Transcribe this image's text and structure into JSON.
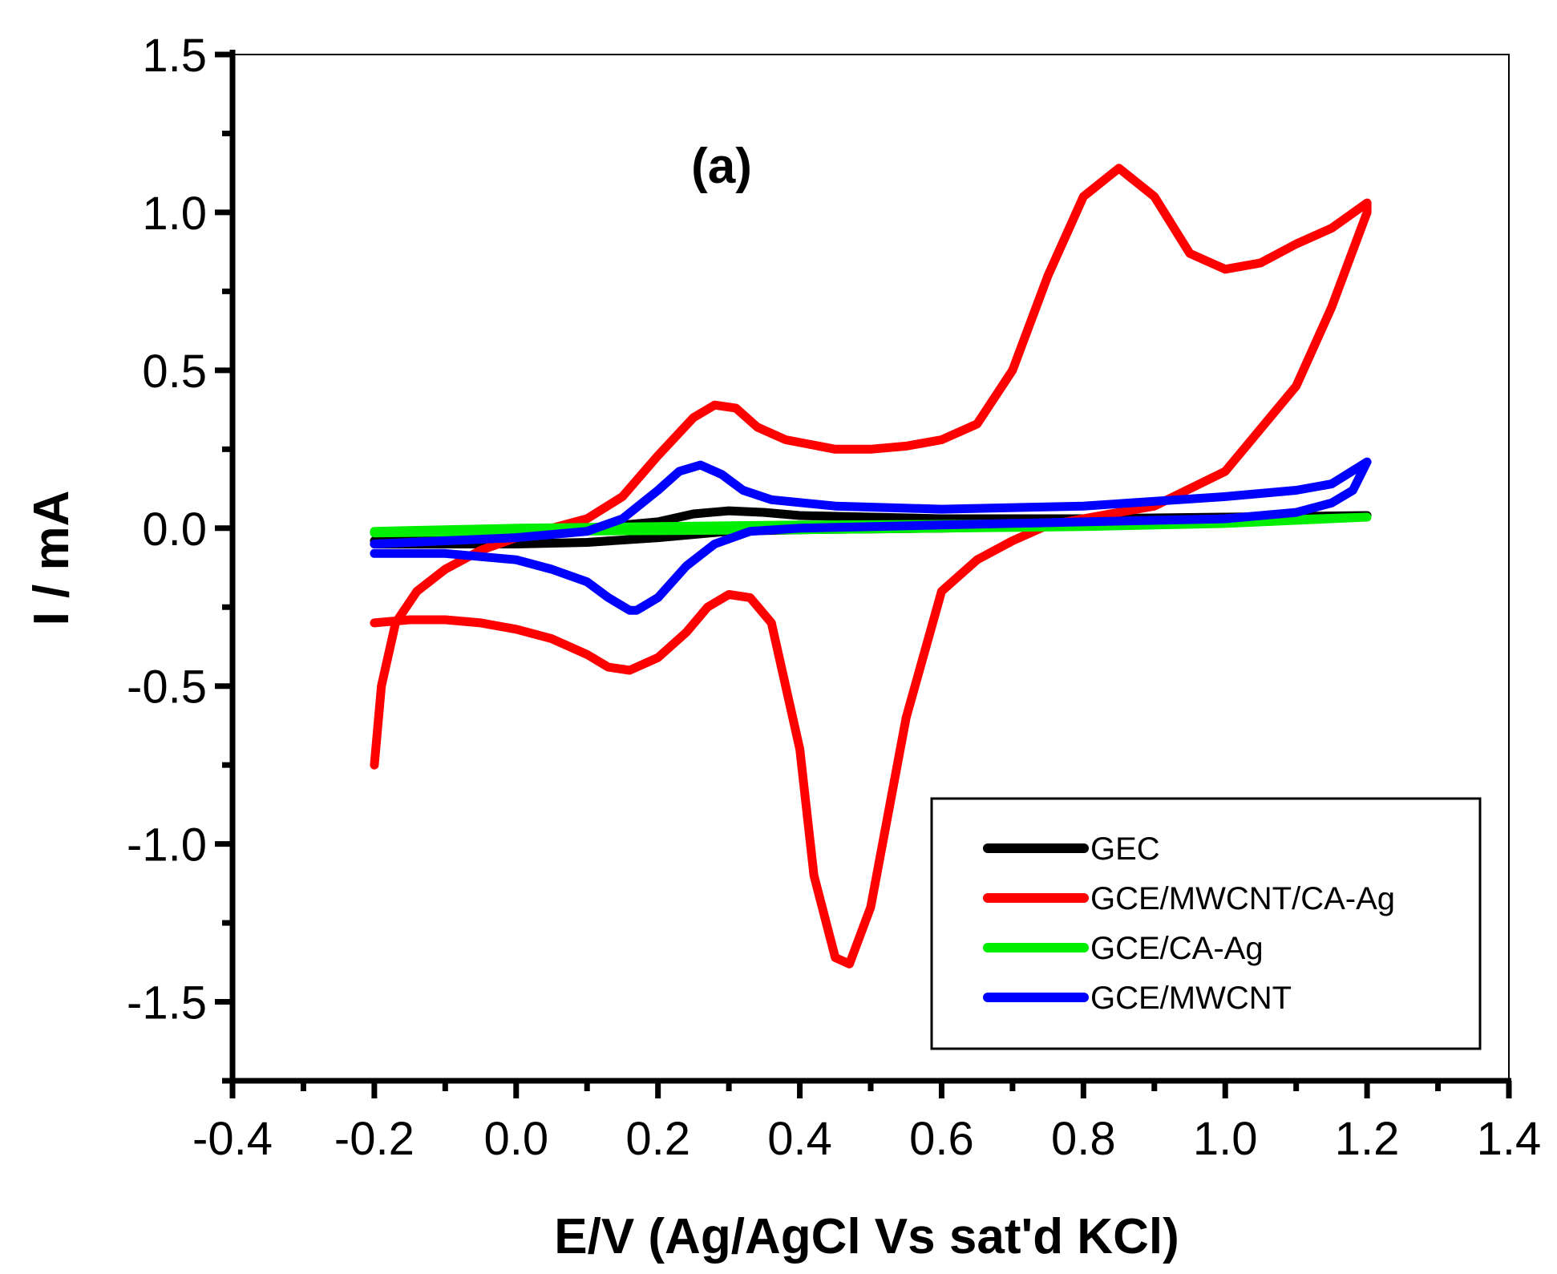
{
  "chart_data": {
    "type": "line",
    "title": "",
    "panel_label": "(a)",
    "xlabel": "E/V (Ag/AgCl Vs sat'd KCl)",
    "ylabel": "I / mA",
    "xlim": [
      -0.4,
      1.4
    ],
    "ylim": [
      -1.75,
      1.5
    ],
    "xticks": [
      -0.4,
      -0.2,
      0.0,
      0.2,
      0.4,
      0.6,
      0.8,
      1.0,
      1.2,
      1.4
    ],
    "xtick_labels": [
      "-0.4",
      "-0.2",
      "0.0",
      "0.2",
      "0.4",
      "0.6",
      "0.8",
      "1.0",
      "1.2",
      "1.4"
    ],
    "yticks": [
      -1.5,
      -1.0,
      -0.5,
      0.0,
      0.5,
      1.0,
      1.5
    ],
    "ytick_labels": [
      "-1.5",
      "-1.0",
      "-0.5",
      "0.0",
      "0.5",
      "1.0",
      "1.5"
    ],
    "legend_position": "bottom-right",
    "series": [
      {
        "name": "GEC",
        "color": "#000000",
        "x": [
          -0.2,
          -0.1,
          0.0,
          0.1,
          0.2,
          0.25,
          0.3,
          0.35,
          0.4,
          0.6,
          0.8,
          1.0,
          1.2,
          1.1,
          1.0,
          0.8,
          0.6,
          0.4,
          0.3,
          0.25,
          0.2,
          0.1,
          0.0,
          -0.1,
          -0.2
        ],
        "y": [
          -0.04,
          -0.03,
          -0.02,
          0.0,
          0.02,
          0.045,
          0.055,
          0.05,
          0.04,
          0.03,
          0.03,
          0.035,
          0.04,
          0.03,
          0.02,
          0.01,
          0.0,
          -0.005,
          -0.01,
          -0.02,
          -0.03,
          -0.045,
          -0.05,
          -0.05,
          -0.05
        ]
      },
      {
        "name": "GCE/MWCNT/CA-Ag",
        "color": "#ff0000",
        "x": [
          -0.2,
          -0.19,
          -0.17,
          -0.14,
          -0.1,
          -0.05,
          0.0,
          0.05,
          0.1,
          0.15,
          0.2,
          0.25,
          0.28,
          0.31,
          0.34,
          0.38,
          0.45,
          0.5,
          0.55,
          0.6,
          0.65,
          0.7,
          0.75,
          0.8,
          0.85,
          0.9,
          0.95,
          1.0,
          1.05,
          1.1,
          1.15,
          1.2,
          1.2,
          1.15,
          1.1,
          1.0,
          0.9,
          0.8,
          0.75,
          0.7,
          0.65,
          0.6,
          0.55,
          0.5,
          0.47,
          0.45,
          0.42,
          0.4,
          0.36,
          0.33,
          0.3,
          0.27,
          0.24,
          0.2,
          0.16,
          0.13,
          0.1,
          0.05,
          0.0,
          -0.05,
          -0.1,
          -0.15,
          -0.2
        ],
        "y": [
          -0.75,
          -0.5,
          -0.3,
          -0.2,
          -0.13,
          -0.07,
          -0.03,
          0.0,
          0.03,
          0.1,
          0.23,
          0.35,
          0.39,
          0.38,
          0.32,
          0.28,
          0.25,
          0.25,
          0.26,
          0.28,
          0.33,
          0.5,
          0.8,
          1.05,
          1.14,
          1.05,
          0.87,
          0.82,
          0.84,
          0.9,
          0.95,
          1.03,
          1.0,
          0.7,
          0.45,
          0.18,
          0.07,
          0.03,
          0.01,
          -0.04,
          -0.1,
          -0.2,
          -0.6,
          -1.2,
          -1.38,
          -1.36,
          -1.1,
          -0.7,
          -0.3,
          -0.22,
          -0.21,
          -0.25,
          -0.33,
          -0.41,
          -0.45,
          -0.44,
          -0.4,
          -0.35,
          -0.32,
          -0.3,
          -0.29,
          -0.29,
          -0.3
        ]
      },
      {
        "name": "GCE/CA-Ag",
        "color": "#00ee00",
        "x": [
          -0.2,
          0.0,
          0.2,
          0.4,
          0.6,
          0.8,
          1.0,
          1.2,
          1.0,
          0.8,
          0.6,
          0.4,
          0.2,
          0.0,
          -0.2
        ],
        "y": [
          -0.01,
          0.0,
          0.005,
          0.01,
          0.012,
          0.015,
          0.02,
          0.035,
          0.015,
          0.005,
          0.0,
          -0.005,
          -0.008,
          -0.01,
          -0.015
        ]
      },
      {
        "name": "GCE/MWCNT",
        "color": "#0000ff",
        "x": [
          -0.2,
          -0.1,
          0.0,
          0.1,
          0.15,
          0.2,
          0.23,
          0.26,
          0.29,
          0.32,
          0.36,
          0.45,
          0.6,
          0.8,
          1.0,
          1.1,
          1.15,
          1.2,
          1.18,
          1.15,
          1.1,
          1.0,
          0.8,
          0.6,
          0.4,
          0.33,
          0.28,
          0.24,
          0.2,
          0.17,
          0.16,
          0.13,
          0.1,
          0.05,
          0.0,
          -0.1,
          -0.2
        ],
        "y": [
          -0.05,
          -0.04,
          -0.03,
          -0.01,
          0.03,
          0.12,
          0.18,
          0.2,
          0.17,
          0.12,
          0.09,
          0.07,
          0.06,
          0.07,
          0.1,
          0.12,
          0.14,
          0.21,
          0.12,
          0.08,
          0.05,
          0.03,
          0.02,
          0.01,
          0.0,
          -0.01,
          -0.05,
          -0.12,
          -0.22,
          -0.26,
          -0.26,
          -0.22,
          -0.17,
          -0.13,
          -0.1,
          -0.08,
          -0.08
        ]
      }
    ]
  }
}
